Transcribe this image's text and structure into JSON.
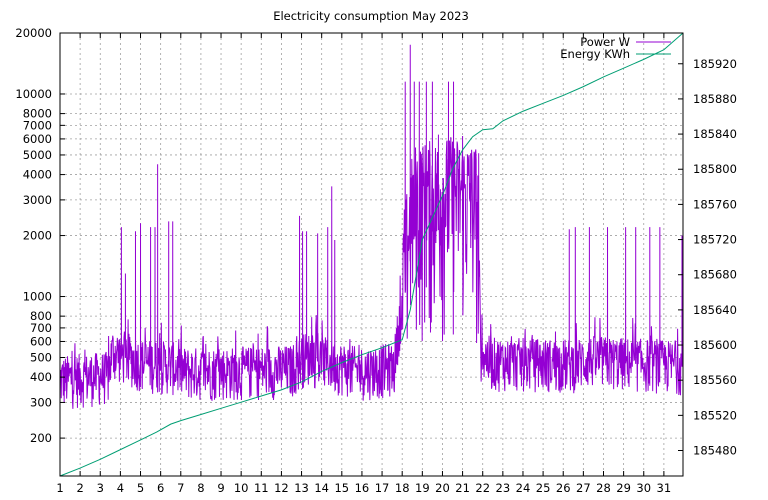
{
  "chart_data": {
    "type": "line",
    "title": "Electricity consumption May 2023",
    "xlabel": "",
    "ylabel": "",
    "y2label": "",
    "xlim": [
      1,
      31.95
    ],
    "ylim": [
      130,
      20000
    ],
    "ylog": true,
    "y2lim": [
      185451,
      185955
    ],
    "grid": true,
    "legend_position": "top-right",
    "x_ticks": [
      1,
      2,
      3,
      4,
      5,
      6,
      7,
      8,
      9,
      10,
      11,
      12,
      13,
      14,
      15,
      16,
      17,
      18,
      19,
      20,
      21,
      22,
      23,
      24,
      25,
      26,
      27,
      28,
      29,
      30,
      31
    ],
    "y_ticks": [
      200,
      300,
      400,
      500,
      600,
      700,
      800,
      1000,
      2000,
      3000,
      4000,
      5000,
      6000,
      7000,
      8000,
      10000,
      20000
    ],
    "y2_ticks": [
      185480,
      185520,
      185560,
      185600,
      185640,
      185680,
      185720,
      185760,
      185800,
      185840,
      185880,
      185920
    ],
    "series": [
      {
        "name": "Power W",
        "axis": "y",
        "color": "#9400d3",
        "baseline": [
          [
            1.0,
            380
          ],
          [
            3.4,
            400
          ],
          [
            3.6,
            520
          ],
          [
            4.2,
            500
          ],
          [
            5.1,
            460
          ],
          [
            6.5,
            450
          ],
          [
            7.2,
            420
          ],
          [
            9.0,
            420
          ],
          [
            12.5,
            430
          ],
          [
            13.2,
            500
          ],
          [
            15.8,
            420
          ],
          [
            17.6,
            440
          ],
          [
            18.2,
            1100
          ],
          [
            18.6,
            2000
          ],
          [
            20.5,
            2200
          ],
          [
            21.7,
            2000
          ],
          [
            21.9,
            520
          ],
          [
            22.4,
            470
          ],
          [
            26.5,
            460
          ],
          [
            27.2,
            480
          ],
          [
            31.95,
            450
          ]
        ],
        "spikes": [
          [
            4.05,
            2200
          ],
          [
            4.25,
            1300
          ],
          [
            4.75,
            2100
          ],
          [
            5.0,
            2300
          ],
          [
            5.5,
            2200
          ],
          [
            5.72,
            2200
          ],
          [
            5.85,
            4500
          ],
          [
            6.4,
            2350
          ],
          [
            6.6,
            2350
          ],
          [
            12.9,
            2500
          ],
          [
            13.05,
            2100
          ],
          [
            13.25,
            2100
          ],
          [
            13.8,
            2050
          ],
          [
            14.3,
            2200
          ],
          [
            14.5,
            3500
          ],
          [
            14.65,
            1900
          ],
          [
            18.15,
            11500
          ],
          [
            18.4,
            17500
          ],
          [
            18.6,
            11500
          ],
          [
            18.85,
            11500
          ],
          [
            19.2,
            11500
          ],
          [
            19.5,
            11500
          ],
          [
            19.8,
            6300
          ],
          [
            20.3,
            11500
          ],
          [
            20.55,
            11500
          ],
          [
            21.0,
            6200
          ],
          [
            21.4,
            5100
          ],
          [
            21.8,
            5100
          ],
          [
            22.1,
            520
          ],
          [
            26.3,
            2150
          ],
          [
            26.6,
            2200
          ],
          [
            27.3,
            2200
          ],
          [
            28.2,
            2200
          ],
          [
            29.1,
            2200
          ],
          [
            29.6,
            2200
          ],
          [
            30.3,
            2200
          ],
          [
            30.8,
            2200
          ],
          [
            31.9,
            2000
          ]
        ]
      },
      {
        "name": "Energy KWh",
        "axis": "y2",
        "color": "#009e73",
        "points": [
          [
            1.0,
            185451
          ],
          [
            2.0,
            185460
          ],
          [
            3.0,
            185470
          ],
          [
            4.0,
            185481
          ],
          [
            5.0,
            185492
          ],
          [
            5.8,
            185501
          ],
          [
            6.5,
            185510
          ],
          [
            7.0,
            185514
          ],
          [
            8.0,
            185521
          ],
          [
            9.0,
            185528
          ],
          [
            10.0,
            185535
          ],
          [
            11.0,
            185542
          ],
          [
            12.0,
            185549
          ],
          [
            13.0,
            185558
          ],
          [
            14.0,
            185570
          ],
          [
            15.0,
            185580
          ],
          [
            16.0,
            185589
          ],
          [
            17.0,
            185597
          ],
          [
            18.0,
            185606
          ],
          [
            18.4,
            185640
          ],
          [
            19.0,
            185720
          ],
          [
            20.0,
            185770
          ],
          [
            20.5,
            185800
          ],
          [
            21.0,
            185822
          ],
          [
            21.5,
            185837
          ],
          [
            22.0,
            185845
          ],
          [
            22.5,
            185846
          ],
          [
            23.0,
            185855
          ],
          [
            24.0,
            185866
          ],
          [
            25.0,
            185875
          ],
          [
            26.0,
            185884
          ],
          [
            27.0,
            185894
          ],
          [
            28.0,
            185905
          ],
          [
            29.0,
            185915
          ],
          [
            30.0,
            185925
          ],
          [
            31.0,
            185936
          ],
          [
            31.95,
            185955
          ]
        ]
      }
    ]
  }
}
